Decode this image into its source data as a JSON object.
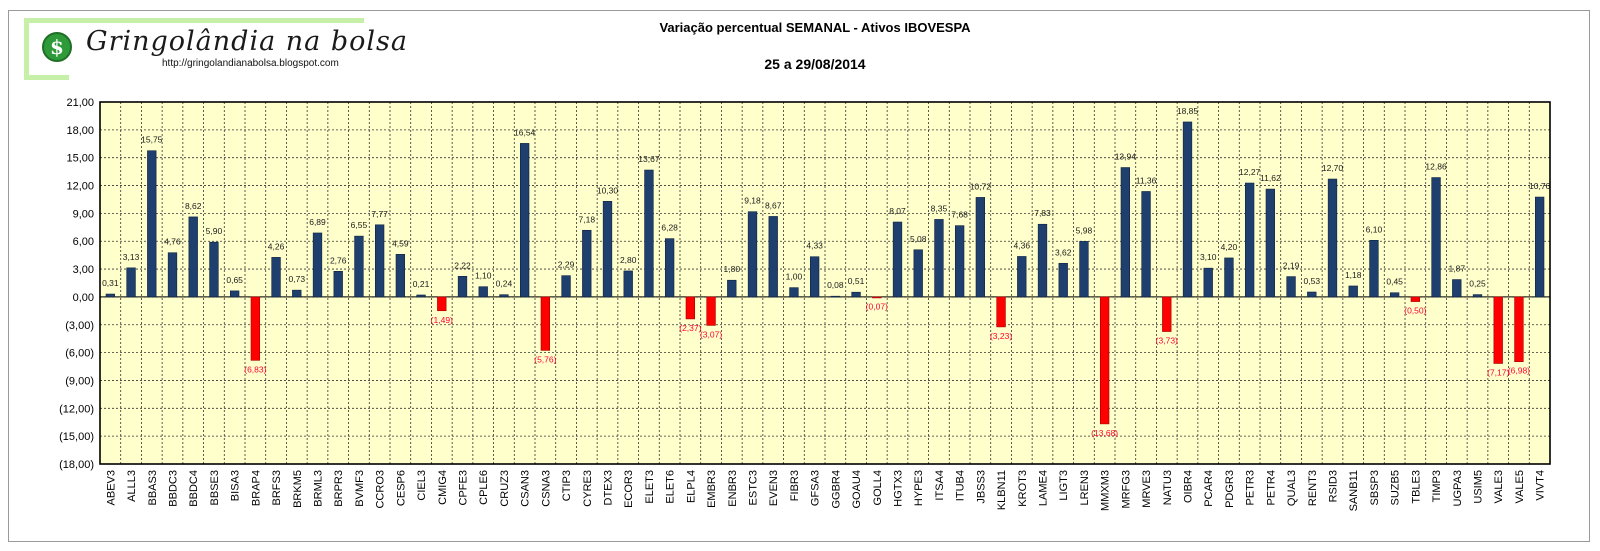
{
  "logo": {
    "name": "Gringolândia na bolsa",
    "url": "http://gringolandianabolsa.blogspot.com",
    "icon": "dollar-coin-icon"
  },
  "colors": {
    "plot_bg": "#ffffcc",
    "positive_bar": "#1f3f6f",
    "negative_bar": "#ff0000",
    "negative_label": "#ff0033",
    "grid": "#333333"
  },
  "chart_data": {
    "type": "bar",
    "title": "Variação  percentual SEMANAL  - Ativos IBOVESPA",
    "subtitle": "25 a 29/08/2014",
    "xlabel": "",
    "ylabel": "",
    "ylim": [
      -18,
      21
    ],
    "y_tick_labels": [
      "21,00",
      "18,00",
      "15,00",
      "12,00",
      "9,00",
      "6,00",
      "3,00",
      "0,00",
      "(3,00)",
      "(6,00)",
      "(9,00)",
      "(12,00)",
      "(15,00)",
      "(18,00)"
    ],
    "y_ticks": [
      21,
      18,
      15,
      12,
      9,
      6,
      3,
      0,
      -3,
      -6,
      -9,
      -12,
      -15,
      -18
    ],
    "grid": true,
    "legend": "none",
    "categories": [
      "ABEV3",
      "ALLL3",
      "BBAS3",
      "BBDC3",
      "BBDC4",
      "BBSE3",
      "BISA3",
      "BRAP4",
      "BRFS3",
      "BRKM5",
      "BRML3",
      "BRPR3",
      "BVMF3",
      "CCRO3",
      "CESP6",
      "CIEL3",
      "CMIG4",
      "CPFE3",
      "CPLE6",
      "CRUZ3",
      "CSAN3",
      "CSNA3",
      "CTIP3",
      "CYRE3",
      "DTEX3",
      "ECOR3",
      "ELET3",
      "ELET6",
      "ELPL4",
      "EMBR3",
      "ENBR3",
      "ESTC3",
      "EVEN3",
      "FIBR3",
      "GFSA3",
      "GGBR4",
      "GOAU4",
      "GOLL4",
      "HGTX3",
      "HYPE3",
      "ITSA4",
      "ITUB4",
      "JBSS3",
      "KLBN11",
      "KROT3",
      "LAME4",
      "LIGT3",
      "LREN3",
      "MMXM3",
      "MRFG3",
      "MRVE3",
      "NATU3",
      "OIBR4",
      "PCAR4",
      "PDGR3",
      "PETR3",
      "PETR4",
      "QUAL3",
      "RENT3",
      "RSID3",
      "SANB11",
      "SBSP3",
      "SUZB5",
      "TBLE3",
      "TIMP3",
      "UGPA3",
      "USIM5",
      "VALE3",
      "VALE5",
      "VIVT4"
    ],
    "values": [
      0.31,
      3.13,
      15.75,
      4.76,
      8.62,
      5.9,
      0.65,
      -6.83,
      4.26,
      0.73,
      6.89,
      2.76,
      6.55,
      7.77,
      4.59,
      0.21,
      -1.49,
      2.22,
      1.1,
      0.24,
      16.54,
      -5.76,
      2.29,
      7.18,
      10.3,
      2.8,
      13.67,
      6.28,
      -2.37,
      -3.07,
      1.8,
      9.18,
      8.67,
      1.0,
      4.33,
      0.08,
      0.51,
      -0.07,
      8.07,
      5.08,
      8.35,
      7.68,
      10.72,
      -3.23,
      4.36,
      7.83,
      3.62,
      5.98,
      -13.68,
      13.94,
      11.36,
      -3.73,
      18.85,
      3.1,
      4.2,
      12.27,
      11.62,
      2.19,
      0.53,
      12.7,
      1.18,
      6.1,
      0.45,
      -0.5,
      12.86,
      1.87,
      0.25,
      -7.17,
      -6.98,
      10.76
    ],
    "value_labels": [
      "0,31",
      "3,13",
      "15,75",
      "4,76",
      "8,62",
      "5,90",
      "0,65",
      "(6,83)",
      "4,26",
      "0,73",
      "6,89",
      "2,76",
      "6,55",
      "7,77",
      "4,59",
      "0,21",
      "(1,49)",
      "2,22",
      "1,10",
      "0,24",
      "16,54",
      "(5,76)",
      "2,29",
      "7,18",
      "10,30",
      "2,80",
      "13,67",
      "6,28",
      "(2,37)",
      "(3,07)",
      "1,80",
      "9,18",
      "8,67",
      "1,00",
      "4,33",
      "0,08",
      "0,51",
      "(0,07)",
      "8,07",
      "5,08",
      "8,35",
      "7,68",
      "10,72",
      "(3,23)",
      "4,36",
      "7,83",
      "3,62",
      "5,98",
      "(13,68)",
      "13,94",
      "11,36",
      "(3,73)",
      "18,85",
      "3,10",
      "4,20",
      "12,27",
      "11,62",
      "2,19",
      "0,53",
      "12,70",
      "1,18",
      "6,10",
      "0,45",
      "(0,50)",
      "12,86",
      "1,87",
      "0,25",
      "(7,17)",
      "(6,98)",
      "10,76"
    ]
  }
}
